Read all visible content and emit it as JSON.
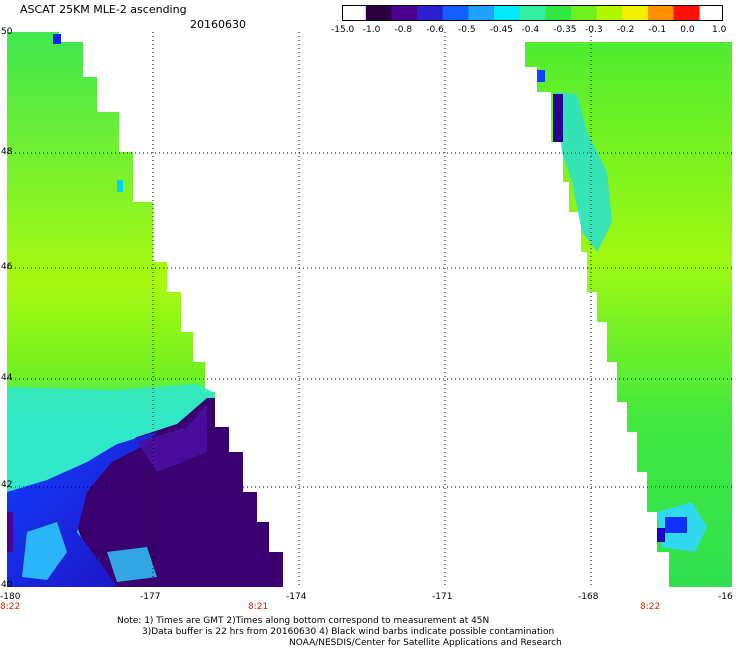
{
  "header": {
    "title": "ASCAT 25KM MLE-2 ascending",
    "date": "20160630"
  },
  "colorbar": {
    "labels": [
      "-15.0",
      "-1.0",
      "-0.8",
      "-0.6",
      "-0.5",
      "-0.45",
      "-0.4",
      "-0.35",
      "-0.3",
      "-0.2",
      "-0.1",
      "0.0",
      "1.0"
    ],
    "colors": [
      "#2a0040",
      "#4b0090",
      "#2a20d0",
      "#1060ff",
      "#20a0ff",
      "#00eaff",
      "#30f0a0",
      "#30e840",
      "#70f020",
      "#b0f800",
      "#f0f000",
      "#ff9000",
      "#ff1000"
    ]
  },
  "map": {
    "lat_labels": [
      "50",
      "48",
      "46",
      "44",
      "42",
      "40"
    ],
    "lon_labels": [
      "-180",
      "-177",
      "-174",
      "-171",
      "-168",
      "-16"
    ],
    "orbit_times": [
      "8:22",
      "8:21",
      "8:22"
    ]
  },
  "notes": [
    "Note: 1) Times are GMT 2)Times along bottom correspond to measurement at 45N",
    "3)Data buffer is 22 hrs from 20160630 4) Black wind barbs indicate possible contamination",
    "NOAA/NESDIS/Center for Satellite Applications and Research"
  ]
}
